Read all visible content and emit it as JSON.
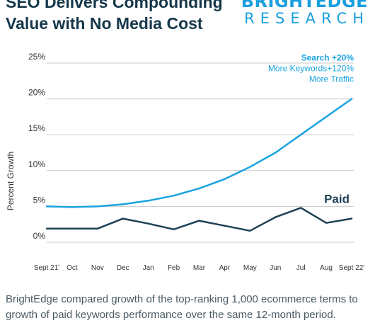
{
  "header": {
    "title": "SEO Delivers Compounding\nValue with No Media Cost",
    "brand_top": "BRIGHTEDGE",
    "brand_bottom": "RESEARCH"
  },
  "caption": "BrightEdge compared growth of the top-ranking 1,000 ecommerce terms to growth of paid keywords performance over the same 12-month period.",
  "colors": {
    "search": "#1aa3e0",
    "paid": "#1e4155",
    "grid": "#c8c8c8",
    "text": "#333333"
  },
  "chart_data": {
    "type": "line",
    "title": "",
    "xlabel": "",
    "ylabel": "Percent Growth",
    "ylim": [
      0,
      25
    ],
    "grid": true,
    "categories": [
      "Sept 21'",
      "Oct",
      "Nov",
      "Dec",
      "Jan",
      "Feb",
      "Mar",
      "Apr",
      "May",
      "Jun",
      "Jul",
      "Aug",
      "Sept 22'"
    ],
    "y_tick_labels": [
      "0%",
      "5%",
      "10%",
      "15%",
      "20%",
      "25%"
    ],
    "series": [
      {
        "name": "Search",
        "values": [
          5.0,
          4.9,
          5.0,
          5.3,
          5.8,
          6.5,
          7.5,
          8.8,
          10.5,
          12.5,
          15.0,
          17.5,
          20.0
        ]
      },
      {
        "name": "Paid",
        "values": [
          1.9,
          1.9,
          1.9,
          3.3,
          2.6,
          1.8,
          3.0,
          2.3,
          1.6,
          3.5,
          4.8,
          2.7,
          3.3
        ]
      }
    ],
    "annotations": {
      "search_lines": [
        "Search +20%",
        "More Keywords+120%",
        "More Traffic"
      ],
      "paid_label": "Paid"
    }
  }
}
